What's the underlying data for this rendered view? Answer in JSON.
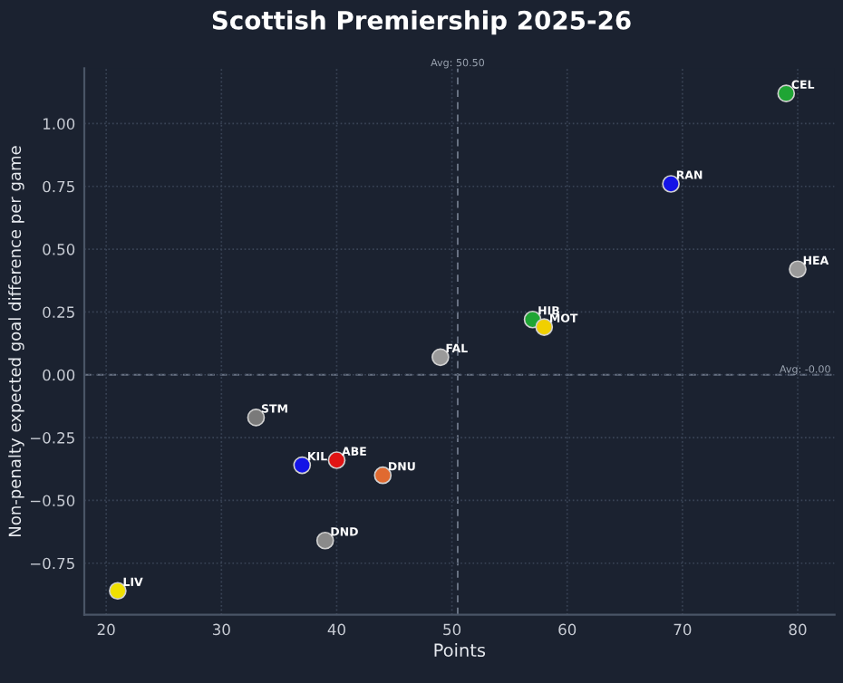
{
  "chart_data": {
    "type": "scatter",
    "title": "Scottish Premiership 2025-26",
    "xlabel": "Points",
    "ylabel": "Non-penalty expected goal difference per game",
    "x": [
      79,
      69,
      80,
      57,
      58,
      49,
      33,
      37,
      40,
      44,
      39,
      21
    ],
    "series": [
      {
        "values": [
          1.12,
          0.76,
          0.42,
          0.22,
          0.19,
          0.07,
          -0.17,
          -0.36,
          -0.34,
          -0.4,
          -0.66,
          -0.86
        ],
        "colors": [
          "#1fa534",
          "#1414e6",
          "#9a9a9a",
          "#1fa534",
          "#f0d000",
          "#9a9a9a",
          "#7a7a7a",
          "#1414e6",
          "#e01414",
          "#e06a30",
          "#8a8a8a",
          "#f0e000"
        ]
      }
    ],
    "annotations": [
      {
        "text": "CEL",
        "x": 79,
        "y": 1.12
      },
      {
        "text": "RAN",
        "x": 69,
        "y": 0.76
      },
      {
        "text": "HEA",
        "x": 80,
        "y": 0.42
      },
      {
        "text": "HIB",
        "x": 57,
        "y": 0.22
      },
      {
        "text": "MOT",
        "x": 58,
        "y": 0.19
      },
      {
        "text": "FAL",
        "x": 49,
        "y": 0.07
      },
      {
        "text": "STM",
        "x": 33,
        "y": -0.17
      },
      {
        "text": "KIL",
        "x": 37,
        "y": -0.36
      },
      {
        "text": "ABE",
        "x": 40,
        "y": -0.34
      },
      {
        "text": "DNU",
        "x": 44,
        "y": -0.4
      },
      {
        "text": "DND",
        "x": 39,
        "y": -0.66
      },
      {
        "text": "LIV",
        "x": 21,
        "y": -0.86
      }
    ],
    "ref_lines": [
      {
        "axis": "x",
        "value": 50.5,
        "label": "Avg: 50.50",
        "color": "#6a7384",
        "line_style": "dashed"
      },
      {
        "axis": "y",
        "value": 0,
        "label": "Avg: -0.00",
        "color": "#6a7384",
        "line_style": "dashed"
      }
    ],
    "xlim": [
      18.1,
      83.2
    ],
    "ylim": [
      -0.955,
      1.22
    ],
    "xticks": [
      20,
      30,
      40,
      50,
      60,
      70,
      80
    ],
    "yticks": [
      {
        "value": -0.75,
        "label": "−0.75"
      },
      {
        "value": -0.5,
        "label": "−0.50"
      },
      {
        "value": -0.25,
        "label": "−0.25"
      },
      {
        "value": 0,
        "label": "0.00"
      },
      {
        "value": 0.25,
        "label": "0.25"
      },
      {
        "value": 0.5,
        "label": "0.50"
      },
      {
        "value": 0.75,
        "label": "0.75"
      },
      {
        "value": 1.0,
        "label": "1.00"
      }
    ],
    "grid": true,
    "marker": "circle",
    "legend": false
  }
}
